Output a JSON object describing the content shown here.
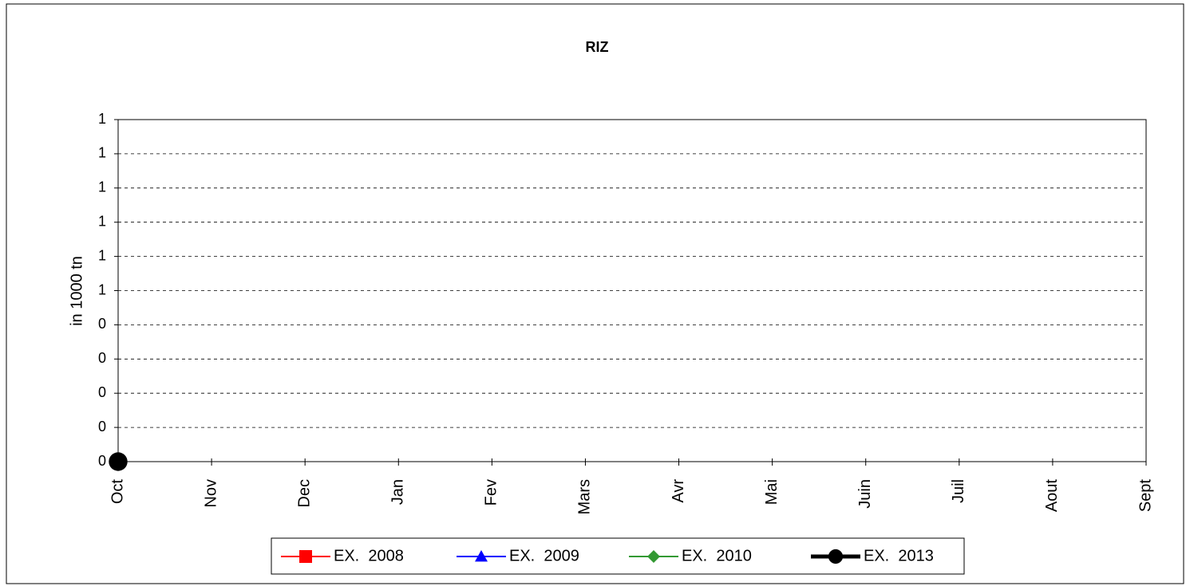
{
  "chart_data": {
    "type": "line",
    "title": "RIZ",
    "y_label": "in 1000 tn",
    "categories": [
      "Oct",
      "Nov",
      "Dec",
      "Jan",
      "Fev",
      "Mars",
      "Avr",
      "Mai",
      "Juin",
      "Juil",
      "Aout",
      "Sept"
    ],
    "series": [
      {
        "name": "EX.  2008",
        "color": "#ff0000",
        "marker": "square",
        "line_width": 2,
        "values": [
          null,
          null,
          null,
          null,
          null,
          null,
          null,
          null,
          null,
          null,
          null,
          null
        ]
      },
      {
        "name": "EX.  2009",
        "color": "#0000ff",
        "marker": "triangle",
        "line_width": 2,
        "values": [
          null,
          null,
          null,
          null,
          null,
          null,
          null,
          null,
          null,
          null,
          null,
          null
        ]
      },
      {
        "name": "EX.  2010",
        "color": "#339933",
        "marker": "diamond",
        "line_width": 2,
        "values": [
          null,
          null,
          null,
          null,
          null,
          null,
          null,
          null,
          null,
          null,
          null,
          null
        ]
      },
      {
        "name": "EX.  2013",
        "color": "#000000",
        "marker": "circle",
        "line_width": 5,
        "values": [
          0,
          null,
          null,
          null,
          null,
          null,
          null,
          null,
          null,
          null,
          null,
          null
        ]
      }
    ],
    "ylim": [
      0,
      1
    ],
    "yticks": [
      0,
      {
        "value": 0.1,
        "label": "0"
      },
      {
        "value": 0.2,
        "label": "0"
      },
      {
        "value": 0.3,
        "label": "0"
      },
      {
        "value": 0.4,
        "label": "0"
      },
      {
        "value": 0.5,
        "label": "1"
      },
      {
        "value": 0.6,
        "label": "1"
      },
      {
        "value": 0.7,
        "label": "1"
      },
      {
        "value": 0.8,
        "label": "1"
      },
      {
        "value": 0.9,
        "label": "1"
      },
      1
    ],
    "grid": true,
    "legend": "bottom"
  }
}
